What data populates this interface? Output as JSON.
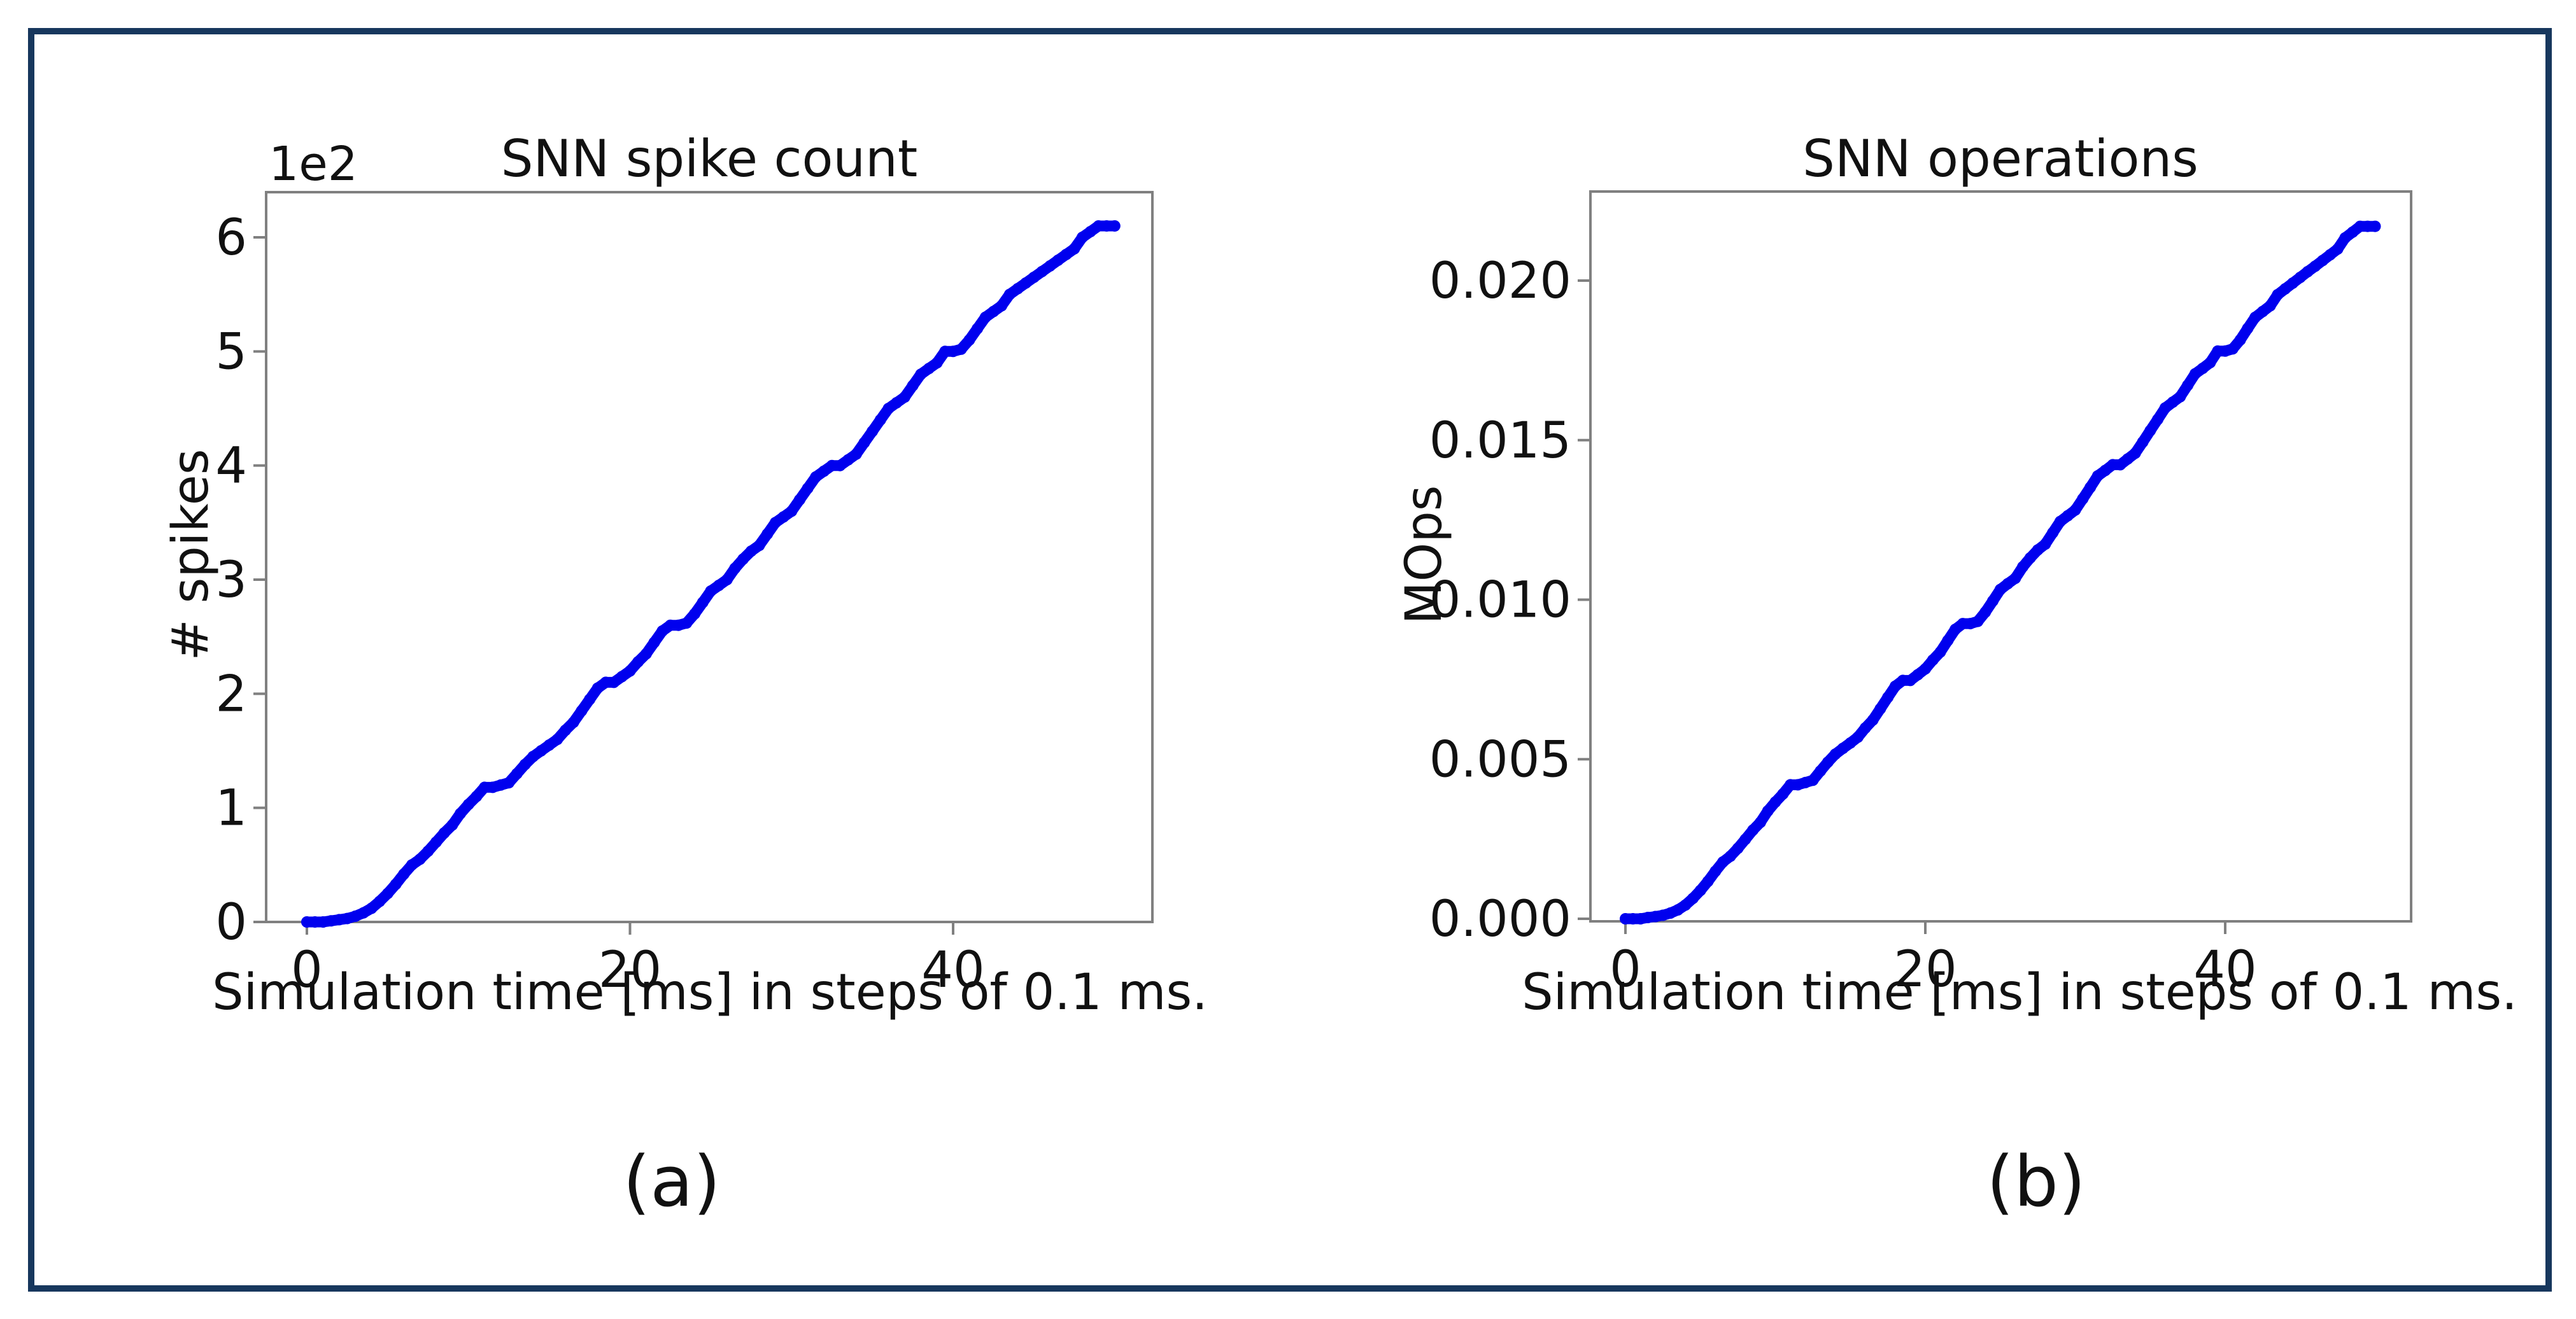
{
  "page": {
    "background_color": "#ffffff",
    "border_color": "#17375d",
    "axis_color": "#808080",
    "text_color": "#111111"
  },
  "figure_labels": {
    "a": "(a)",
    "b": "(b)"
  },
  "chart_data": [
    {
      "type": "scatter",
      "title": "SNN spike count",
      "xlabel": "Simulation time [ms] in steps of 0.1 ms.",
      "ylabel": "# spikes",
      "y_offset_label": "1e2",
      "marker_color": "#0000ee",
      "grid": false,
      "legend": null,
      "x_ticks": [
        0,
        20,
        40
      ],
      "x_tick_labels": [
        "0",
        "20",
        "40"
      ],
      "y_ticks": [
        0,
        1,
        2,
        3,
        4,
        5,
        6
      ],
      "y_tick_labels": [
        "0",
        "1",
        "2",
        "3",
        "4",
        "5",
        "6"
      ],
      "y_scale_note": "y tick values are in units of 1e2 spikes",
      "xlim": [
        -2.5,
        52.4
      ],
      "ylim": [
        0,
        6.4
      ],
      "x_start": 0,
      "x_step": 0.5,
      "values": [
        0,
        0,
        0,
        0.01,
        0.02,
        0.03,
        0.05,
        0.08,
        0.12,
        0.18,
        0.25,
        0.33,
        0.42,
        0.5,
        0.55,
        0.62,
        0.7,
        0.78,
        0.85,
        0.95,
        1.03,
        1.1,
        1.18,
        1.18,
        1.2,
        1.22,
        1.3,
        1.38,
        1.45,
        1.5,
        1.55,
        1.6,
        1.68,
        1.75,
        1.85,
        1.95,
        2.05,
        2.1,
        2.1,
        2.15,
        2.2,
        2.28,
        2.35,
        2.45,
        2.55,
        2.6,
        2.6,
        2.62,
        2.7,
        2.8,
        2.9,
        2.95,
        3.0,
        3.1,
        3.18,
        3.25,
        3.3,
        3.4,
        3.5,
        3.55,
        3.6,
        3.7,
        3.8,
        3.9,
        3.95,
        4.0,
        4.0,
        4.05,
        4.1,
        4.2,
        4.3,
        4.4,
        4.5,
        4.55,
        4.6,
        4.7,
        4.8,
        4.85,
        4.9,
        5.0,
        5.0,
        5.02,
        5.1,
        5.2,
        5.3,
        5.35,
        5.4,
        5.5,
        5.55,
        5.6,
        5.65,
        5.7,
        5.75,
        5.8,
        5.85,
        5.9,
        6.0,
        6.05,
        6.1,
        6.1,
        6.1
      ]
    },
    {
      "type": "scatter",
      "title": "SNN operations",
      "xlabel": "Simulation time [ms] in steps of 0.1 ms.",
      "ylabel": "MOps",
      "y_offset_label": null,
      "marker_color": "#0000ee",
      "grid": false,
      "legend": null,
      "x_ticks": [
        0,
        20,
        40
      ],
      "x_tick_labels": [
        "0",
        "20",
        "40"
      ],
      "y_ticks": [
        0,
        0.005,
        0.01,
        0.015,
        0.02
      ],
      "y_tick_labels": [
        "0.000",
        "0.005",
        "0.010",
        "0.015",
        "0.020"
      ],
      "xlim": [
        -2.3,
        52.4
      ],
      "ylim": [
        0,
        0.0228
      ],
      "x_start": 0,
      "x_step": 0.5,
      "values": [
        0,
        0,
        0,
        4e-05,
        7e-05,
        0.00011,
        0.00018,
        0.00028,
        0.00043,
        0.00064,
        0.00089,
        0.00117,
        0.00149,
        0.00178,
        0.00196,
        0.00221,
        0.00249,
        0.00278,
        0.00302,
        0.00338,
        0.00366,
        0.00391,
        0.0042,
        0.0042,
        0.00427,
        0.00434,
        0.00463,
        0.00491,
        0.00516,
        0.00534,
        0.00551,
        0.00569,
        0.00598,
        0.00623,
        0.00658,
        0.00694,
        0.00729,
        0.00747,
        0.00747,
        0.00765,
        0.00783,
        0.00811,
        0.00836,
        0.00872,
        0.00907,
        0.00925,
        0.00925,
        0.00932,
        0.00961,
        0.00996,
        0.01032,
        0.0105,
        0.01067,
        0.01103,
        0.01131,
        0.01156,
        0.01174,
        0.0121,
        0.01245,
        0.01263,
        0.01281,
        0.01316,
        0.01352,
        0.01388,
        0.01405,
        0.01423,
        0.01423,
        0.01441,
        0.01459,
        0.01494,
        0.0153,
        0.01565,
        0.01601,
        0.01619,
        0.01636,
        0.01672,
        0.01708,
        0.01725,
        0.01743,
        0.01779,
        0.01779,
        0.01786,
        0.01814,
        0.0185,
        0.01885,
        0.01903,
        0.01921,
        0.01956,
        0.01974,
        0.01992,
        0.0201,
        0.02028,
        0.02045,
        0.02063,
        0.02081,
        0.02099,
        0.02134,
        0.02152,
        0.0217,
        0.0217,
        0.0217
      ]
    }
  ]
}
